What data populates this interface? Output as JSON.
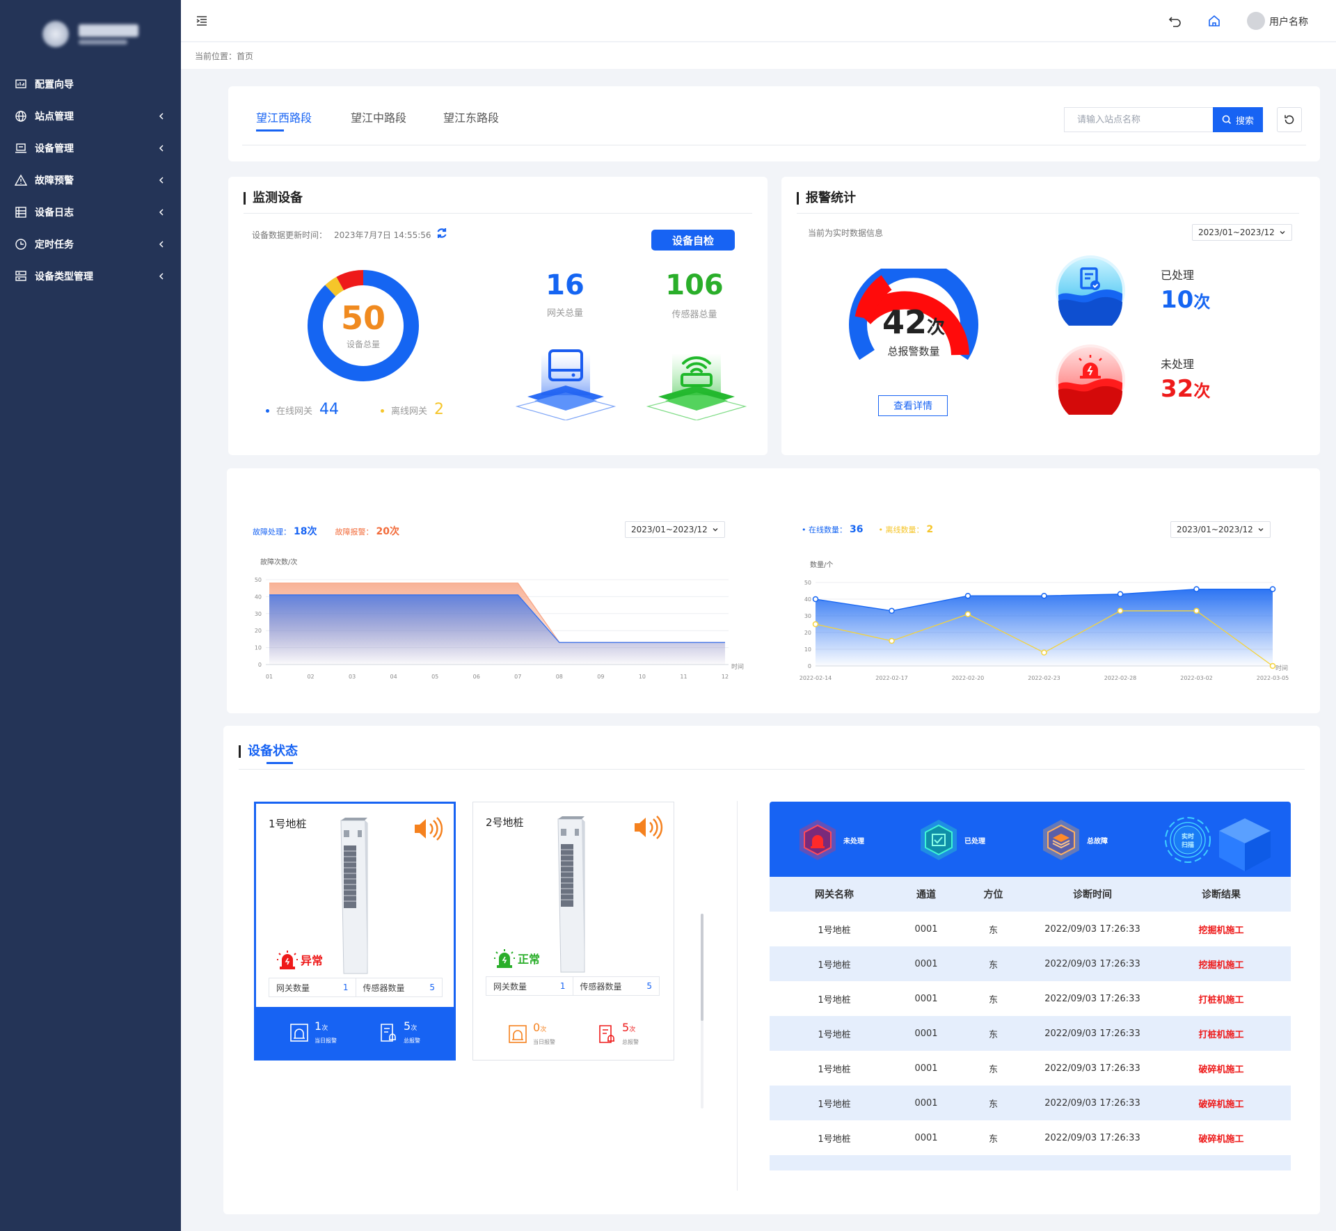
{
  "sidebar": {
    "items": [
      {
        "label": "配置向导",
        "icon": "chart-board-icon",
        "has_children": false
      },
      {
        "label": "站点管理",
        "icon": "globe-icon",
        "has_children": true
      },
      {
        "label": "设备管理",
        "icon": "device-monitor-icon",
        "has_children": true
      },
      {
        "label": "故障预警",
        "icon": "warning-triangle-icon",
        "has_children": true
      },
      {
        "label": "设备日志",
        "icon": "log-list-icon",
        "has_children": true
      },
      {
        "label": "定时任务",
        "icon": "clock-icon",
        "has_children": true
      },
      {
        "label": "设备类型管理",
        "icon": "server-stack-icon",
        "has_children": true
      }
    ]
  },
  "header": {
    "username": "用户名称",
    "breadcrumb": "当前位置：首页"
  },
  "tabs": {
    "items": [
      "望江西路段",
      "望江中路段",
      "望江东路段"
    ],
    "active_index": 0,
    "search_placeholder": "请输入站点名称",
    "search_label": "搜索"
  },
  "monitor": {
    "title": "监测设备",
    "update_label": "设备数据更新时间：",
    "update_time": "2023年7月7日 14:55:56",
    "selfcheck_label": "设备自检",
    "total": "50",
    "total_label": "设备总量",
    "online_label": "在线网关",
    "online_value": "44",
    "offline_label": "离线网关",
    "offline_value": "2",
    "gateway_total": "16",
    "gateway_label": "网关总量",
    "sensor_total": "106",
    "sensor_label": "传感器总量",
    "donut_segments": [
      {
        "name": "online",
        "value": 44,
        "color": "#1565f2"
      },
      {
        "name": "offline",
        "value": 2,
        "color": "#f5c52a"
      },
      {
        "name": "other",
        "value": 4,
        "color": "#ee1a1a"
      }
    ]
  },
  "alarm": {
    "title": "报警统计",
    "realtime_label": "当前为实时数据信息",
    "date_range": "2023/01~2023/12",
    "total": "42",
    "unit": "次",
    "total_label": "总报警数量",
    "detail_label": "查看详情",
    "handled_label": "已处理",
    "handled_value": "10",
    "unhandled_label": "未处理",
    "unhandled_value": "32"
  },
  "fault_chart": {
    "handled_label": "故障处理：",
    "handled_value": "18次",
    "alarm_label": "故障报警：",
    "alarm_value": "20次",
    "date_range": "2023/01~2023/12"
  },
  "online_chart": {
    "online_label": "在线数量：",
    "online_value": "36",
    "offline_label": "离线数量：",
    "offline_value": "2",
    "date_range": "2023/01~2023/12"
  },
  "chart_data": [
    {
      "type": "area",
      "title": "",
      "ylabel": "故障次数/次",
      "xlabel": "时间",
      "x": [
        "01",
        "02",
        "03",
        "04",
        "05",
        "06",
        "07",
        "08",
        "09",
        "10",
        "11",
        "12"
      ],
      "ylim": [
        0,
        50
      ],
      "yticks": [
        0,
        10,
        20,
        30,
        40,
        50
      ],
      "series": [
        {
          "name": "故障报警",
          "values": [
            48,
            48,
            48,
            48,
            48,
            48,
            48,
            13,
            13,
            13,
            13,
            13
          ],
          "color": "#f7a585"
        },
        {
          "name": "故障处理",
          "values": [
            41,
            41,
            41,
            41,
            41,
            41,
            41,
            13,
            13,
            13,
            13,
            13
          ],
          "color": "#2f6ff0"
        }
      ]
    },
    {
      "type": "line",
      "title": "",
      "ylabel": "数量/个",
      "xlabel": "时间",
      "x": [
        "2022-02-14",
        "2022-02-17",
        "2022-02-20",
        "2022-02-23",
        "2022-02-28",
        "2022-03-02",
        "2022-03-05"
      ],
      "ylim": [
        0,
        50
      ],
      "yticks": [
        0,
        10,
        20,
        30,
        40,
        50
      ],
      "series": [
        {
          "name": "在线数量",
          "values": [
            40,
            33,
            42,
            42,
            43,
            46,
            46
          ],
          "color": "#1565f2"
        },
        {
          "name": "离线数量",
          "values": [
            25,
            15,
            31,
            8,
            33,
            33,
            0
          ],
          "color": "#f5d33a"
        }
      ]
    }
  ],
  "status": {
    "title": "设备状态",
    "piles": [
      {
        "name": "1号地桩",
        "status": "异常",
        "status_color": "#ee1a1a",
        "gateway_label": "网关数量",
        "gateway_value": "1",
        "sensor_label": "传感器数量",
        "sensor_value": "5",
        "today_value": "1",
        "today_label": "当日报警",
        "total_value": "5",
        "total_label": "总报警",
        "unit": "次",
        "selected": true
      },
      {
        "name": "2号地桩",
        "status": "正常",
        "status_color": "#2aae2a",
        "gateway_label": "网关数量",
        "gateway_value": "1",
        "sensor_label": "传感器数量",
        "sensor_value": "5",
        "today_value": "0",
        "today_label": "当日报警",
        "total_value": "5",
        "total_label": "总报警",
        "unit": "次",
        "selected": false
      }
    ],
    "banner": [
      "未处理",
      "已处理",
      "总故障",
      "实时扫描"
    ],
    "columns": [
      "网关名称",
      "通道",
      "方位",
      "诊断时间",
      "诊断结果"
    ],
    "rows": [
      [
        "1号地桩",
        "0001",
        "东",
        "2022/09/03 17:26:33",
        "挖掘机施工"
      ],
      [
        "1号地桩",
        "0001",
        "东",
        "2022/09/03 17:26:33",
        "挖掘机施工"
      ],
      [
        "1号地桩",
        "0001",
        "东",
        "2022/09/03 17:26:33",
        "打桩机施工"
      ],
      [
        "1号地桩",
        "0001",
        "东",
        "2022/09/03 17:26:33",
        "打桩机施工"
      ],
      [
        "1号地桩",
        "0001",
        "东",
        "2022/09/03 17:26:33",
        "破碎机施工"
      ],
      [
        "1号地桩",
        "0001",
        "东",
        "2022/09/03 17:26:33",
        "破碎机施工"
      ],
      [
        "1号地桩",
        "0001",
        "东",
        "2022/09/03 17:26:33",
        "破碎机施工"
      ]
    ]
  }
}
